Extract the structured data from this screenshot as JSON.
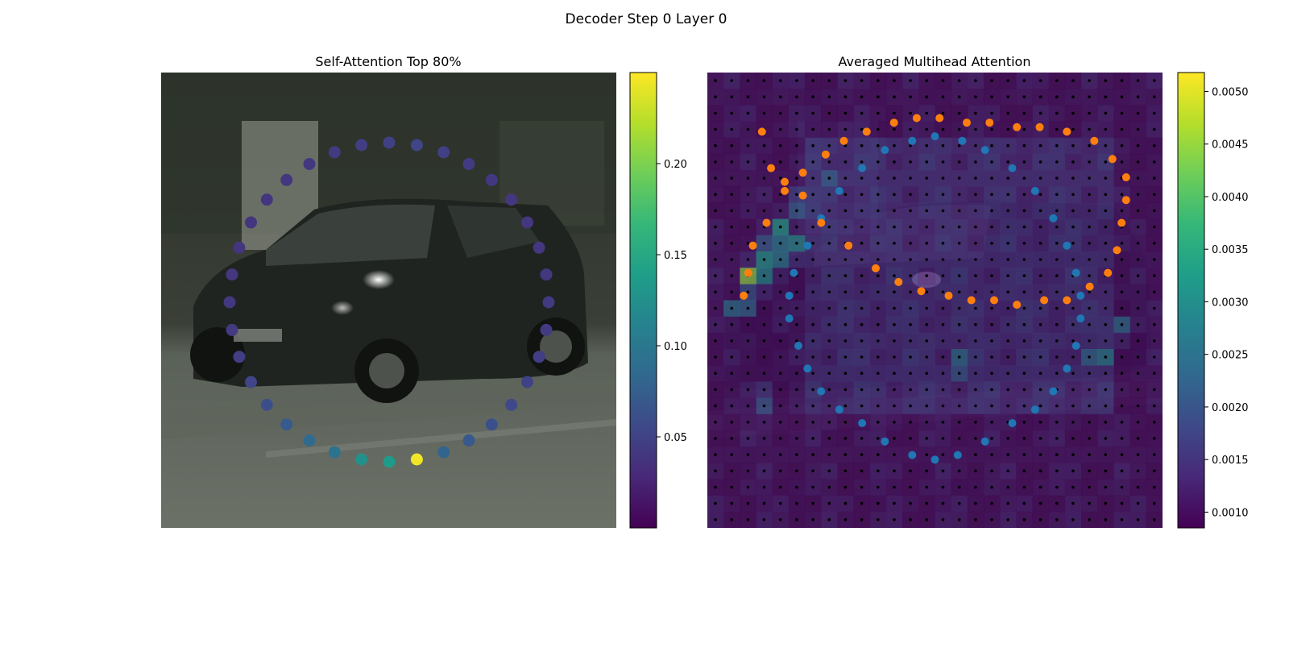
{
  "figure": {
    "title": "Decoder Step 0 Layer 0"
  },
  "colors": {
    "viridis": [
      "#440154",
      "#482878",
      "#3e4989",
      "#31688e",
      "#26828e",
      "#1f9e89",
      "#35b779",
      "#6ece58",
      "#b5de2b",
      "#fde725"
    ],
    "series_blue": "#1f77b4",
    "series_orange": "#ff7f0e",
    "grid_dot": "#000000"
  },
  "chart_data": [
    {
      "type": "scatter",
      "title": "Self-Attention Top 80%",
      "background": "camera-image-street-car",
      "axes_visible": false,
      "colorbar": {
        "min": 0.0,
        "max": 0.25,
        "ticks": [
          0.05,
          0.1,
          0.15,
          0.2
        ],
        "tick_labels": [
          "0.05",
          "0.10",
          "0.15",
          "0.20"
        ],
        "colormap": "viridis"
      },
      "points": {
        "shape": "circle",
        "count": 36,
        "weights": [
          0.135,
          0.125,
          0.095,
          0.085,
          0.072,
          0.06,
          0.052,
          0.046,
          0.043,
          0.041,
          0.04,
          0.039,
          0.039,
          0.039,
          0.04,
          0.041,
          0.043,
          0.046,
          0.049,
          0.052,
          0.048,
          0.044,
          0.041,
          0.04,
          0.04,
          0.04,
          0.041,
          0.042,
          0.044,
          0.046,
          0.05,
          0.056,
          0.062,
          0.07,
          0.08,
          0.245
        ]
      }
    },
    {
      "type": "heatmap",
      "title": "Averaged Multihead Attention",
      "background": "camera-image-street-car",
      "axes_visible": false,
      "grid": {
        "rows": 28,
        "cols": 28,
        "x_range": [
          0,
          1
        ],
        "y_range": [
          0,
          1
        ]
      },
      "colorbar": {
        "min": 0.00085,
        "max": 0.00518,
        "ticks": [
          0.001,
          0.0015,
          0.002,
          0.0025,
          0.003,
          0.0035,
          0.004,
          0.0045,
          0.005
        ],
        "tick_labels": [
          "0.0010",
          "0.0015",
          "0.0020",
          "0.0025",
          "0.0030",
          "0.0035",
          "0.0040",
          "0.0045",
          "0.0050"
        ],
        "colormap": "viridis"
      },
      "heat_spots": [
        {
          "x": 0.1,
          "y": 0.45,
          "value": 0.005
        },
        {
          "x": 0.14,
          "y": 0.4,
          "value": 0.0042
        },
        {
          "x": 0.18,
          "y": 0.38,
          "value": 0.0038
        },
        {
          "x": 0.07,
          "y": 0.52,
          "value": 0.0031
        },
        {
          "x": 0.16,
          "y": 0.34,
          "value": 0.0033
        },
        {
          "x": 0.21,
          "y": 0.29,
          "value": 0.0029
        },
        {
          "x": 0.55,
          "y": 0.64,
          "value": 0.003
        },
        {
          "x": 0.86,
          "y": 0.62,
          "value": 0.0034
        },
        {
          "x": 0.9,
          "y": 0.56,
          "value": 0.0027
        },
        {
          "x": 0.26,
          "y": 0.24,
          "value": 0.0024
        },
        {
          "x": 0.12,
          "y": 0.72,
          "value": 0.0024
        }
      ],
      "series": [
        {
          "marker": "circle",
          "color": "blue",
          "points": [
            [
              0.5,
              0.85
            ],
            [
              0.55,
              0.84
            ],
            [
              0.61,
              0.81
            ],
            [
              0.67,
              0.77
            ],
            [
              0.72,
              0.74
            ],
            [
              0.76,
              0.7
            ],
            [
              0.79,
              0.65
            ],
            [
              0.81,
              0.6
            ],
            [
              0.82,
              0.54
            ],
            [
              0.82,
              0.49
            ],
            [
              0.81,
              0.44
            ],
            [
              0.79,
              0.38
            ],
            [
              0.76,
              0.32
            ],
            [
              0.72,
              0.26
            ],
            [
              0.67,
              0.21
            ],
            [
              0.61,
              0.17
            ],
            [
              0.56,
              0.15
            ],
            [
              0.5,
              0.14
            ],
            [
              0.45,
              0.15
            ],
            [
              0.39,
              0.17
            ],
            [
              0.34,
              0.21
            ],
            [
              0.29,
              0.26
            ],
            [
              0.25,
              0.32
            ],
            [
              0.22,
              0.38
            ],
            [
              0.19,
              0.44
            ],
            [
              0.18,
              0.49
            ],
            [
              0.18,
              0.54
            ],
            [
              0.2,
              0.6
            ],
            [
              0.22,
              0.65
            ],
            [
              0.25,
              0.7
            ],
            [
              0.29,
              0.74
            ],
            [
              0.34,
              0.77
            ],
            [
              0.39,
              0.81
            ],
            [
              0.45,
              0.84
            ]
          ]
        },
        {
          "marker": "circle",
          "color": "orange",
          "points": [
            [
              0.08,
              0.49
            ],
            [
              0.09,
              0.44
            ],
            [
              0.1,
              0.38
            ],
            [
              0.13,
              0.33
            ],
            [
              0.17,
              0.26
            ],
            [
              0.21,
              0.22
            ],
            [
              0.26,
              0.18
            ],
            [
              0.3,
              0.15
            ],
            [
              0.35,
              0.13
            ],
            [
              0.41,
              0.11
            ],
            [
              0.46,
              0.1
            ],
            [
              0.51,
              0.1
            ],
            [
              0.57,
              0.11
            ],
            [
              0.62,
              0.11
            ],
            [
              0.68,
              0.12
            ],
            [
              0.73,
              0.12
            ],
            [
              0.79,
              0.13
            ],
            [
              0.85,
              0.15
            ],
            [
              0.89,
              0.19
            ],
            [
              0.92,
              0.23
            ],
            [
              0.92,
              0.28
            ],
            [
              0.91,
              0.33
            ],
            [
              0.9,
              0.39
            ],
            [
              0.88,
              0.44
            ],
            [
              0.84,
              0.47
            ],
            [
              0.79,
              0.5
            ],
            [
              0.74,
              0.5
            ],
            [
              0.68,
              0.51
            ],
            [
              0.63,
              0.5
            ],
            [
              0.58,
              0.5
            ],
            [
              0.53,
              0.49
            ],
            [
              0.47,
              0.48
            ],
            [
              0.42,
              0.46
            ],
            [
              0.37,
              0.43
            ],
            [
              0.31,
              0.38
            ],
            [
              0.25,
              0.33
            ],
            [
              0.21,
              0.27
            ],
            [
              0.17,
              0.24
            ],
            [
              0.14,
              0.21
            ],
            [
              0.12,
              0.13
            ]
          ]
        }
      ]
    }
  ]
}
